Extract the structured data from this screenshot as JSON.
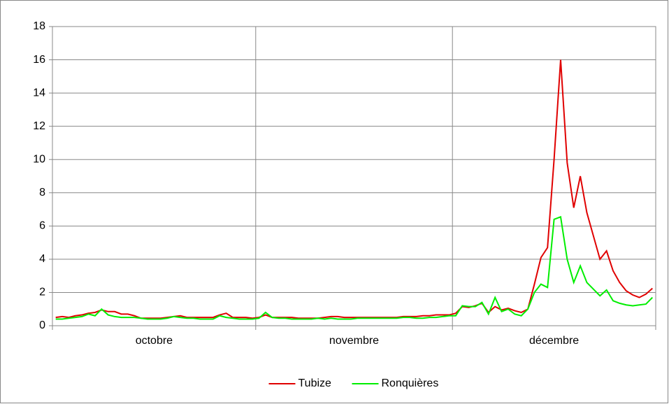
{
  "chart_data": {
    "type": "line",
    "categories": [
      "octobre",
      null,
      null,
      null,
      null,
      null,
      null,
      null,
      null,
      null,
      null,
      null,
      null,
      null,
      null,
      null,
      null,
      null,
      null,
      null,
      null,
      null,
      null,
      null,
      null,
      null,
      null,
      null,
      null,
      null,
      null,
      "novembre",
      null,
      null,
      null,
      null,
      null,
      null,
      null,
      null,
      null,
      null,
      null,
      null,
      null,
      null,
      null,
      null,
      null,
      null,
      null,
      null,
      null,
      null,
      null,
      null,
      null,
      null,
      null,
      null,
      null,
      "décembre",
      null,
      null,
      null,
      null,
      null,
      null,
      null,
      null,
      null,
      null,
      null,
      null,
      null,
      null,
      null,
      null,
      null,
      null,
      null,
      null,
      null,
      null,
      null,
      null,
      null,
      null,
      null,
      null,
      null,
      null
    ],
    "series": [
      {
        "name": "Tubize",
        "color": "#e00000",
        "values": [
          0.5,
          0.55,
          0.5,
          0.6,
          0.65,
          0.75,
          0.8,
          0.95,
          0.85,
          0.85,
          0.7,
          0.7,
          0.6,
          0.45,
          0.45,
          0.45,
          0.45,
          0.5,
          0.55,
          0.6,
          0.5,
          0.5,
          0.5,
          0.5,
          0.5,
          0.65,
          0.75,
          0.5,
          0.5,
          0.5,
          0.45,
          0.5,
          0.65,
          0.5,
          0.5,
          0.5,
          0.5,
          0.45,
          0.45,
          0.45,
          0.45,
          0.5,
          0.55,
          0.55,
          0.5,
          0.5,
          0.5,
          0.5,
          0.5,
          0.5,
          0.5,
          0.5,
          0.5,
          0.55,
          0.55,
          0.55,
          0.6,
          0.6,
          0.65,
          0.65,
          0.65,
          0.75,
          1.15,
          1.1,
          1.2,
          1.35,
          0.8,
          1.15,
          0.95,
          1.05,
          0.9,
          0.8,
          1.0,
          2.5,
          4.1,
          4.7,
          10.0,
          16.0,
          9.8,
          7.1,
          9.0,
          6.8,
          5.4,
          4.0,
          4.5,
          3.3,
          2.6,
          2.1,
          1.85,
          1.7,
          1.9,
          2.25
        ]
      },
      {
        "name": "Ronquières",
        "color": "#00ee00",
        "values": [
          0.4,
          0.4,
          0.45,
          0.5,
          0.55,
          0.7,
          0.6,
          1.0,
          0.65,
          0.55,
          0.5,
          0.5,
          0.5,
          0.45,
          0.4,
          0.4,
          0.4,
          0.45,
          0.55,
          0.5,
          0.45,
          0.45,
          0.4,
          0.4,
          0.4,
          0.6,
          0.5,
          0.45,
          0.4,
          0.4,
          0.4,
          0.45,
          0.8,
          0.5,
          0.45,
          0.45,
          0.4,
          0.4,
          0.4,
          0.4,
          0.45,
          0.4,
          0.45,
          0.4,
          0.4,
          0.4,
          0.45,
          0.45,
          0.45,
          0.45,
          0.45,
          0.45,
          0.45,
          0.5,
          0.5,
          0.45,
          0.45,
          0.5,
          0.5,
          0.55,
          0.6,
          0.6,
          1.2,
          1.15,
          1.15,
          1.4,
          0.7,
          1.7,
          0.85,
          1.0,
          0.7,
          0.6,
          1.0,
          2.0,
          2.5,
          2.3,
          6.4,
          6.55,
          4.0,
          2.6,
          3.6,
          2.6,
          2.2,
          1.8,
          2.15,
          1.5,
          1.35,
          1.25,
          1.2,
          1.25,
          1.3,
          1.7
        ]
      }
    ],
    "ylim": [
      0,
      18
    ],
    "yticks": [
      0,
      2,
      4,
      6,
      8,
      10,
      12,
      14,
      16,
      18
    ],
    "grid": true,
    "legend": "bottom"
  }
}
